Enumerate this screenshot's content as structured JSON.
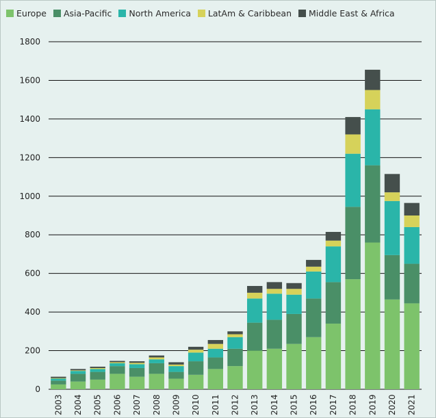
{
  "chart_data": {
    "type": "bar",
    "stacked": true,
    "title": "",
    "xlabel": "",
    "ylabel": "",
    "ylim": [
      0,
      1800
    ],
    "yticks": [
      0,
      200,
      400,
      600,
      800,
      1000,
      1200,
      1400,
      1600,
      1800
    ],
    "grid": true,
    "legend_position": "top-left",
    "categories": [
      "2003",
      "2004",
      "2005",
      "2006",
      "2007",
      "2008",
      "2009",
      "2010",
      "2011",
      "2012",
      "2013",
      "2014",
      "2015",
      "2016",
      "2017",
      "2018",
      "2019",
      "2020",
      "2021"
    ],
    "series": [
      {
        "name": "Europe",
        "color": "#7dc36b",
        "values": [
          25,
          40,
          50,
          80,
          65,
          80,
          55,
          75,
          105,
          120,
          200,
          210,
          235,
          270,
          340,
          570,
          760,
          465,
          445
        ]
      },
      {
        "name": "Asia-Pacific",
        "color": "#4a8f67",
        "values": [
          20,
          40,
          40,
          40,
          45,
          55,
          35,
          70,
          60,
          90,
          145,
          150,
          155,
          200,
          215,
          375,
          400,
          230,
          205
        ]
      },
      {
        "name": "North America",
        "color": "#2ab5a9",
        "values": [
          10,
          15,
          15,
          15,
          20,
          20,
          30,
          45,
          45,
          60,
          125,
          135,
          100,
          140,
          185,
          275,
          290,
          280,
          190
        ]
      },
      {
        "name": "LatAm & Caribbean",
        "color": "#d6d25a",
        "values": [
          3,
          3,
          5,
          5,
          7,
          10,
          8,
          15,
          25,
          15,
          30,
          25,
          30,
          25,
          30,
          100,
          100,
          45,
          60
        ]
      },
      {
        "name": "Middle East & Africa",
        "color": "#454f4c",
        "values": [
          7,
          7,
          7,
          7,
          8,
          10,
          12,
          15,
          20,
          15,
          35,
          35,
          30,
          35,
          45,
          90,
          105,
          95,
          65
        ]
      }
    ]
  }
}
